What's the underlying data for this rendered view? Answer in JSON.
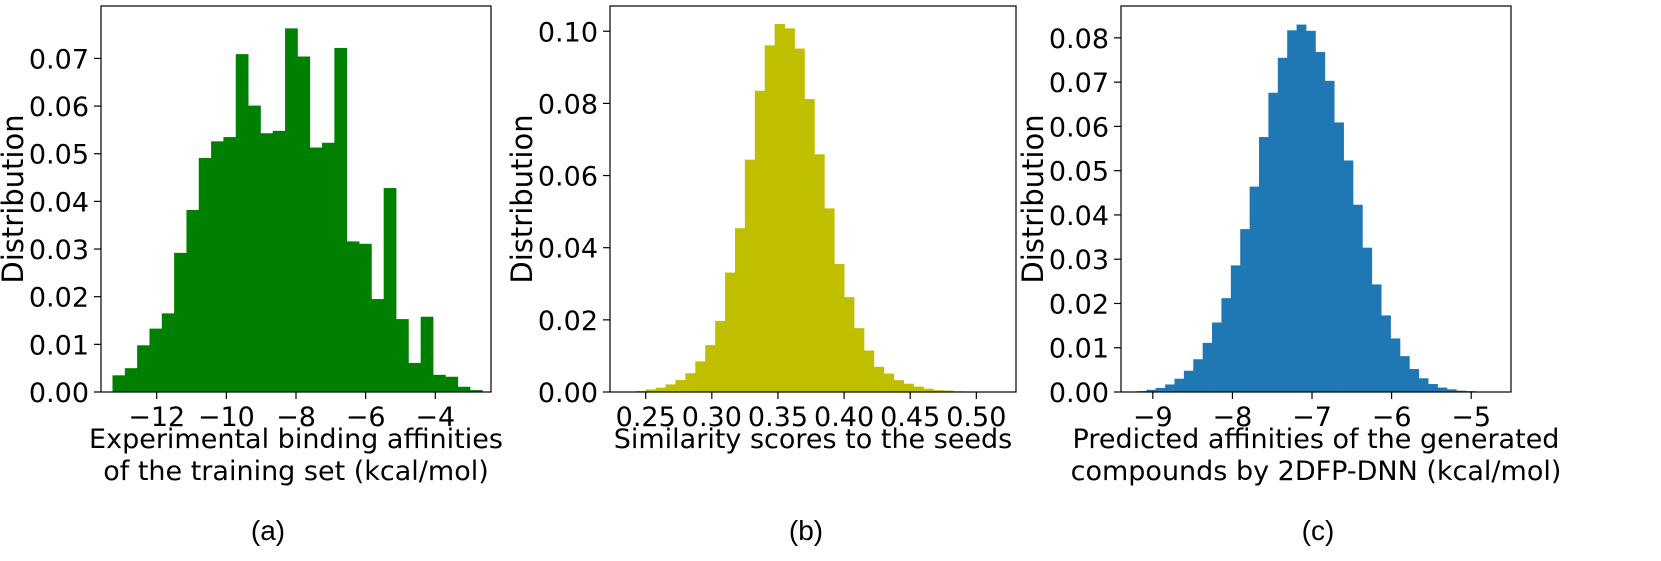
{
  "chart_data": [
    {
      "type": "bar",
      "subtitle": "(a)",
      "xlabel_lines": [
        "Experimental binding affinities",
        "of the training set (kcal/mol)"
      ],
      "ylabel": "Distribution",
      "xlim": [
        -13.6,
        -2.4
      ],
      "ylim": [
        0,
        0.081
      ],
      "xticks": [
        -12,
        -10,
        -8,
        -6,
        -4
      ],
      "xtick_labels": [
        "−12",
        "−10",
        "−8",
        "−6",
        "−4"
      ],
      "yticks": [
        0.0,
        0.01,
        0.02,
        0.03,
        0.04,
        0.05,
        0.06,
        0.07
      ],
      "ytick_labels": [
        "0.00",
        "0.01",
        "0.02",
        "0.03",
        "0.04",
        "0.05",
        "0.06",
        "0.07"
      ],
      "grid": false,
      "color": "#008000",
      "bin_start": -13.27,
      "bin_width": 0.354,
      "values": [
        0.0035,
        0.005,
        0.0098,
        0.0133,
        0.0165,
        0.0292,
        0.0382,
        0.0491,
        0.0526,
        0.0535,
        0.0709,
        0.0601,
        0.0543,
        0.0548,
        0.0763,
        0.0704,
        0.0513,
        0.0523,
        0.0722,
        0.0316,
        0.0311,
        0.0195,
        0.0428,
        0.0153,
        0.0061,
        0.0158,
        0.0036,
        0.0032,
        0.0011,
        0.0004
      ]
    },
    {
      "type": "bar",
      "subtitle": "(b)",
      "xlabel_lines": [
        "Similarity scores to the seeds"
      ],
      "ylabel": "Distribution",
      "xlim": [
        0.223,
        0.53
      ],
      "ylim": [
        0,
        0.107
      ],
      "xticks": [
        0.25,
        0.3,
        0.35,
        0.4,
        0.45,
        0.5
      ],
      "xtick_labels": [
        "0.25",
        "0.30",
        "0.35",
        "0.40",
        "0.45",
        "0.50"
      ],
      "yticks": [
        0.0,
        0.02,
        0.04,
        0.06,
        0.08,
        0.1
      ],
      "ytick_labels": [
        "0.00",
        "0.02",
        "0.04",
        "0.06",
        "0.08",
        "0.10"
      ],
      "grid": false,
      "color": "#bfbf00",
      "bin_start": 0.235,
      "bin_width": 0.0075,
      "values": [
        0.0001,
        0.0003,
        0.0007,
        0.0012,
        0.0021,
        0.0033,
        0.0052,
        0.0085,
        0.013,
        0.0197,
        0.0331,
        0.0454,
        0.0644,
        0.0835,
        0.0961,
        0.102,
        0.1008,
        0.0952,
        0.0812,
        0.0659,
        0.0509,
        0.0355,
        0.0263,
        0.0177,
        0.0115,
        0.007,
        0.0051,
        0.0033,
        0.0023,
        0.0015,
        0.0009,
        0.0005,
        0.0004,
        0.0002,
        0.0001
      ]
    },
    {
      "type": "bar",
      "subtitle": "(c)",
      "xlabel_lines": [
        "Predicted affinities of the generated",
        "compounds by 2DFP-DNN (kcal/mol)"
      ],
      "ylabel": "Distribution",
      "xlim": [
        -9.4,
        -4.5
      ],
      "ylim": [
        0,
        0.0872
      ],
      "xticks": [
        -9,
        -8,
        -7,
        -6,
        -5
      ],
      "xtick_labels": [
        "−9",
        "−8",
        "−7",
        "−6",
        "−5"
      ],
      "yticks": [
        0.0,
        0.01,
        0.02,
        0.03,
        0.04,
        0.05,
        0.06,
        0.07,
        0.08
      ],
      "ytick_labels": [
        "0.00",
        "0.01",
        "0.02",
        "0.03",
        "0.04",
        "0.05",
        "0.06",
        "0.07",
        "0.08"
      ],
      "grid": false,
      "color": "#1f77b4",
      "bin_start": -9.2,
      "bin_width": 0.118,
      "values": [
        0.0002,
        0.0005,
        0.0009,
        0.0017,
        0.003,
        0.0048,
        0.0074,
        0.0111,
        0.0157,
        0.0212,
        0.0286,
        0.0368,
        0.0464,
        0.0576,
        0.0676,
        0.0755,
        0.0817,
        0.083,
        0.0816,
        0.0768,
        0.0703,
        0.0609,
        0.0523,
        0.0423,
        0.0326,
        0.0243,
        0.0173,
        0.0121,
        0.0081,
        0.0052,
        0.0031,
        0.0018,
        0.001,
        0.0006,
        0.0003,
        0.0002,
        0.0001
      ]
    }
  ]
}
